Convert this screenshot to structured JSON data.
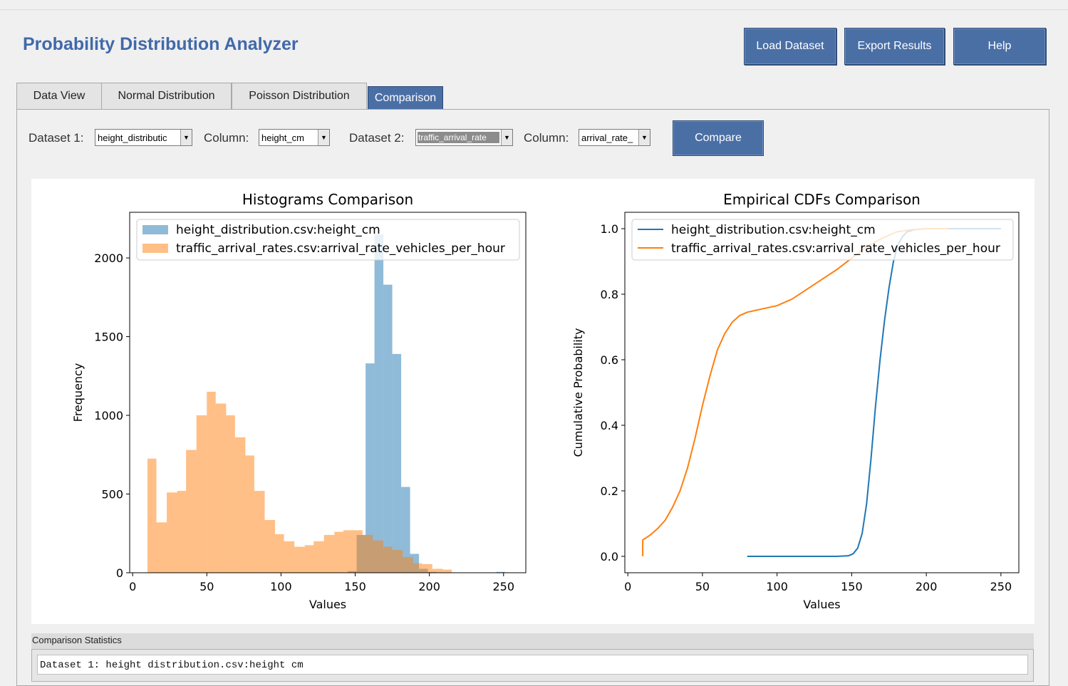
{
  "app": {
    "title": "Probability Distribution Analyzer",
    "buttons": {
      "load": "Load Dataset",
      "export": "Export Results",
      "help": "Help"
    }
  },
  "tabs": [
    {
      "label": "Data View"
    },
    {
      "label": "Normal Distribution"
    },
    {
      "label": "Poisson Distribution"
    },
    {
      "label": "Comparison",
      "active": true
    }
  ],
  "controls": {
    "dataset1_label": "Dataset 1:",
    "dataset1_value": "height_distributic",
    "column1_label": "Column:",
    "column1_value": "height_cm",
    "dataset2_label": "Dataset 2:",
    "dataset2_value": "traffic_arrival_rate",
    "column2_label": "Column:",
    "column2_value": "arrival_rate_",
    "compare_label": "Compare"
  },
  "colors": {
    "accent": "#4a6fa5",
    "series1": "#1f77b4",
    "series2": "#ff7f0e"
  },
  "chart_data": [
    {
      "type": "bar",
      "title": "Histograms Comparison",
      "xlabel": "Values",
      "ylabel": "Frequency",
      "xlim": [
        -2,
        265
      ],
      "ylim": [
        0,
        2290
      ],
      "xticks": [
        0,
        50,
        100,
        150,
        200,
        250
      ],
      "yticks": [
        0,
        500,
        1000,
        1500,
        2000
      ],
      "legend": "upper right",
      "series": [
        {
          "name": "height_distribution.csv:height_cm",
          "color": "#1f77b4",
          "alpha": 0.5,
          "bins": [
            [
              145,
              151,
              10
            ],
            [
              151,
              157,
              240
            ],
            [
              157,
              163,
              1330
            ],
            [
              163,
              169,
              2150
            ],
            [
              169,
              175,
              1830
            ],
            [
              175,
              181,
              1390
            ],
            [
              181,
              187,
              545
            ],
            [
              187,
              193,
              120
            ],
            [
              193,
              199,
              25
            ],
            [
              199,
              205,
              5
            ],
            [
              245,
              251,
              5
            ]
          ]
        },
        {
          "name": "traffic_arrival_rates.csv:arrival_rate_vehicles_per_hour",
          "color": "#ff7f0e",
          "alpha": 0.5,
          "bins": [
            [
              10,
              16,
              725
            ],
            [
              16,
              23,
              320
            ],
            [
              23,
              30,
              510
            ],
            [
              30,
              36,
              520
            ],
            [
              36,
              43,
              780
            ],
            [
              43,
              50,
              1000
            ],
            [
              50,
              56,
              1150
            ],
            [
              56,
              63,
              1075
            ],
            [
              63,
              69,
              1000
            ],
            [
              69,
              76,
              860
            ],
            [
              76,
              82,
              745
            ],
            [
              82,
              89,
              520
            ],
            [
              89,
              96,
              335
            ],
            [
              96,
              102,
              245
            ],
            [
              102,
              109,
              200
            ],
            [
              109,
              116,
              165
            ],
            [
              116,
              122,
              175
            ],
            [
              122,
              129,
              200
            ],
            [
              129,
              136,
              240
            ],
            [
              136,
              142,
              260
            ],
            [
              142,
              149,
              270
            ],
            [
              149,
              155,
              270
            ],
            [
              155,
              162,
              240
            ],
            [
              162,
              169,
              205
            ],
            [
              169,
              175,
              165
            ],
            [
              175,
              182,
              145
            ],
            [
              182,
              189,
              100
            ],
            [
              189,
              195,
              60
            ],
            [
              195,
              202,
              55
            ],
            [
              202,
              209,
              25
            ],
            [
              209,
              215,
              20
            ]
          ]
        }
      ]
    },
    {
      "type": "line",
      "title": "Empirical CDFs Comparison",
      "xlabel": "Values",
      "ylabel": "Cumulative Probability",
      "xlim": [
        -2,
        262
      ],
      "ylim": [
        -0.05,
        1.05
      ],
      "xticks": [
        0,
        50,
        100,
        150,
        200,
        250
      ],
      "yticks": [
        0.0,
        0.2,
        0.4,
        0.6,
        0.8,
        1.0
      ],
      "legend": "upper left",
      "series": [
        {
          "name": "height_distribution.csv:height_cm",
          "color": "#1f77b4",
          "points": [
            [
              80,
              0
            ],
            [
              140,
              0
            ],
            [
              148,
              0.002
            ],
            [
              151,
              0.008
            ],
            [
              154,
              0.025
            ],
            [
              157,
              0.07
            ],
            [
              160,
              0.16
            ],
            [
              163,
              0.3
            ],
            [
              166,
              0.46
            ],
            [
              169,
              0.6
            ],
            [
              172,
              0.72
            ],
            [
              175,
              0.82
            ],
            [
              178,
              0.9
            ],
            [
              181,
              0.95
            ],
            [
              184,
              0.975
            ],
            [
              187,
              0.99
            ],
            [
              192,
              0.997
            ],
            [
              200,
              1.0
            ],
            [
              250,
              1.0
            ]
          ]
        },
        {
          "name": "traffic_arrival_rates.csv:arrival_rate_vehicles_per_hour",
          "color": "#ff7f0e",
          "points": [
            [
              10,
              0
            ],
            [
              10,
              0.05
            ],
            [
              15,
              0.065
            ],
            [
              20,
              0.085
            ],
            [
              25,
              0.11
            ],
            [
              30,
              0.15
            ],
            [
              35,
              0.2
            ],
            [
              40,
              0.27
            ],
            [
              45,
              0.36
            ],
            [
              50,
              0.46
            ],
            [
              55,
              0.55
            ],
            [
              60,
              0.63
            ],
            [
              65,
              0.68
            ],
            [
              70,
              0.715
            ],
            [
              75,
              0.735
            ],
            [
              80,
              0.745
            ],
            [
              90,
              0.755
            ],
            [
              100,
              0.765
            ],
            [
              110,
              0.785
            ],
            [
              120,
              0.815
            ],
            [
              130,
              0.845
            ],
            [
              140,
              0.875
            ],
            [
              150,
              0.91
            ],
            [
              160,
              0.945
            ],
            [
              170,
              0.97
            ],
            [
              180,
              0.99
            ],
            [
              190,
              0.997
            ],
            [
              200,
              1.0
            ],
            [
              215,
              1.0
            ]
          ]
        }
      ]
    }
  ],
  "stats": {
    "header": "Comparison Statistics",
    "line1": "Dataset 1: height distribution.csv:height cm"
  }
}
